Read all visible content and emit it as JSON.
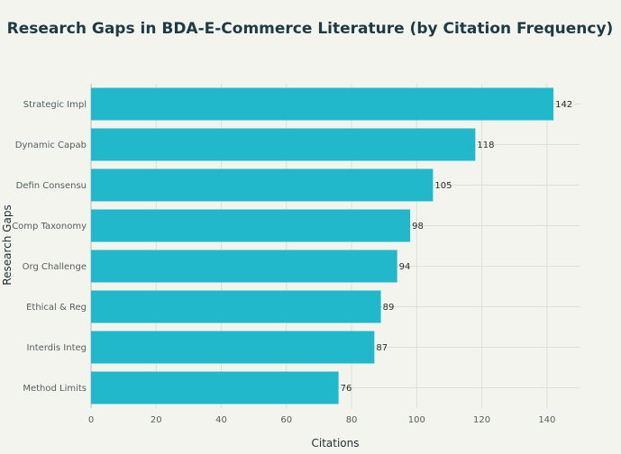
{
  "chart_data": {
    "type": "bar",
    "orientation": "horizontal",
    "title": "Research Gaps in BDA-E-Commerce Literature (by Citation Frequency)",
    "xlabel": "Citations",
    "ylabel": "Research Gaps",
    "categories": [
      "Strategic Impl",
      "Dynamic Capab",
      "Defin Consensu",
      "Comp Taxonomy",
      "Org Challenge",
      "Ethical & Reg",
      "Interdis Integ",
      "Method Limits"
    ],
    "values": [
      142,
      118,
      105,
      98,
      94,
      89,
      87,
      76
    ],
    "xlim": [
      0,
      150
    ],
    "xticks": [
      0,
      20,
      40,
      60,
      80,
      100,
      120,
      140
    ],
    "grid": true,
    "bar_color": "#22b8cc"
  }
}
